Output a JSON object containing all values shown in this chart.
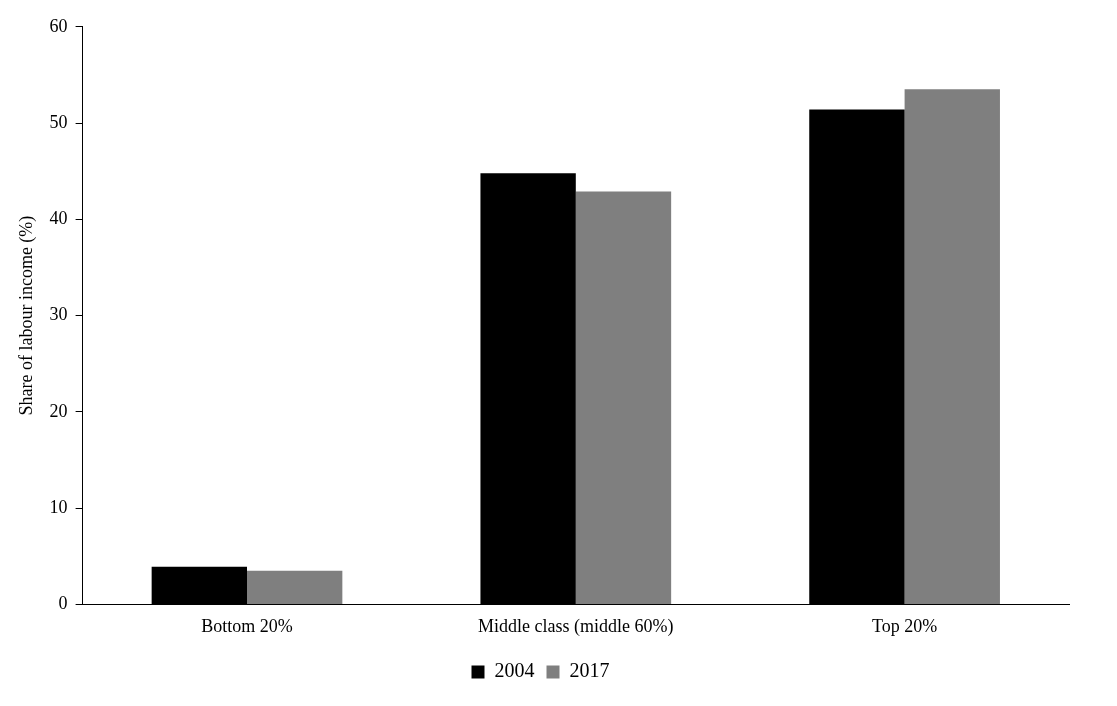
{
  "chart_data": {
    "type": "bar",
    "ylabel": "Share of labour income (%)",
    "categories": [
      "Bottom 20%",
      "Middle class (middle 60%)",
      "Top 20%"
    ],
    "series": [
      {
        "name": "2004",
        "color": "#000000",
        "values": [
          3.9,
          44.8,
          51.4
        ]
      },
      {
        "name": "2017",
        "color": "#7f7f7f",
        "values": [
          3.5,
          42.9,
          53.5
        ]
      }
    ],
    "ylim": [
      0,
      60
    ],
    "yticks": [
      0,
      10,
      20,
      30,
      40,
      50,
      60
    ],
    "grid": false,
    "legend": "bottom"
  }
}
